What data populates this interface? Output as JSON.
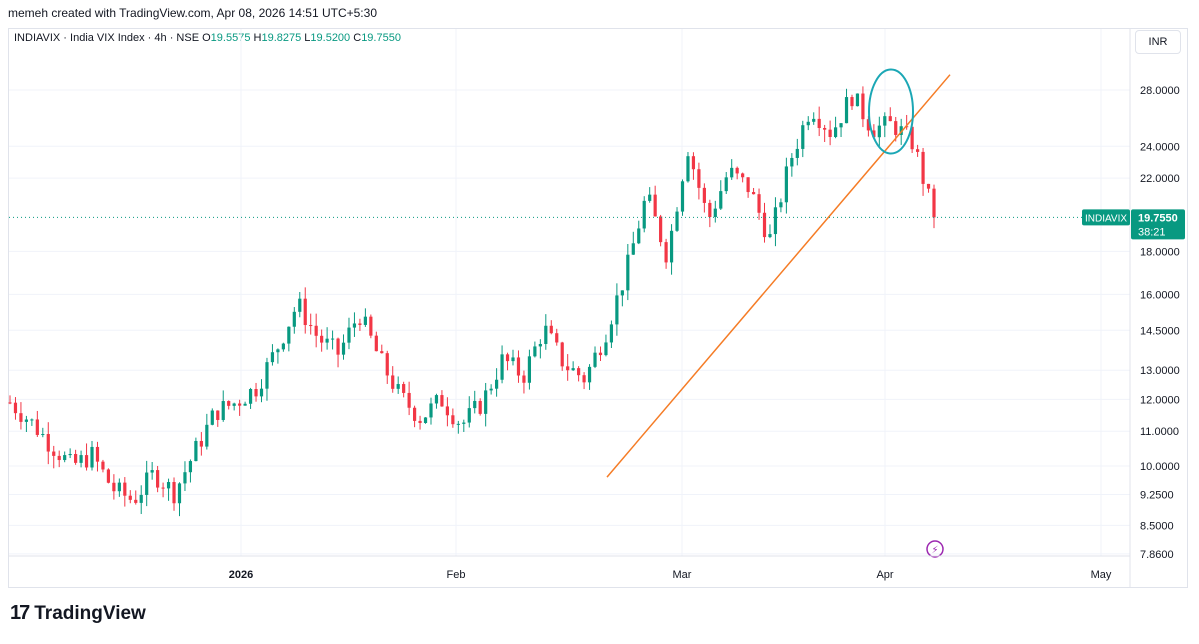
{
  "attribution": "memeh created with TradingView.com, Apr 08, 2026 14:51 UTC+5:30",
  "legend": {
    "symbol": "INDIAVIX · India VIX Index · 4h · NSE",
    "o_key": "O",
    "o": "19.5575",
    "h_key": "H",
    "h": "19.8275",
    "l_key": "L",
    "l": "19.5200",
    "c_key": "C",
    "c": "19.7550"
  },
  "currency": "INR",
  "brand": "TradingView",
  "colors": {
    "up": "#089981",
    "down": "#f23645",
    "trendline": "#f57c26",
    "circle": "#1ba7b5",
    "badge": "#089981",
    "flash": "#9c27b0"
  },
  "chart_data": {
    "type": "candlestick",
    "scale": "log",
    "y_ticks": [
      "28.0000",
      "24.0000",
      "22.0000",
      "18.0000",
      "16.0000",
      "14.5000",
      "13.0000",
      "12.0000",
      "11.0000",
      "10.0000",
      "9.2500",
      "8.5000",
      "7.8600"
    ],
    "x_ticks": [
      "2026",
      "Feb",
      "Mar",
      "Apr",
      "May"
    ],
    "last_price": {
      "symbol": "INDIAVIX",
      "value": "19.7550",
      "countdown": "38:21"
    },
    "path": [
      11.9,
      11.3,
      10.6,
      10.0,
      10.3,
      9.4,
      9.1,
      9.8,
      9.3,
      10.4,
      11.6,
      11.9,
      12.4,
      13.8,
      15.6,
      14.2,
      13.6,
      15.2,
      13.4,
      12.1,
      11.4,
      12.0,
      11.2,
      11.9,
      13.4,
      12.8,
      14.6,
      13.2,
      12.7,
      14.4,
      17.0,
      21.0,
      17.8,
      24.0,
      19.6,
      22.4,
      21.4,
      18.6,
      23.1,
      26.8,
      24.9,
      27.6,
      25.2,
      25.5,
      24.2,
      19.7
    ],
    "annotations": [
      {
        "type": "trendline",
        "from": [
          "Feb 21",
          9.7
        ],
        "to": [
          "Apr 13",
          29.2
        ]
      },
      {
        "type": "ellipse",
        "center": [
          "Apr 01",
          26.4
        ],
        "note": "hand-drawn circle"
      }
    ]
  }
}
